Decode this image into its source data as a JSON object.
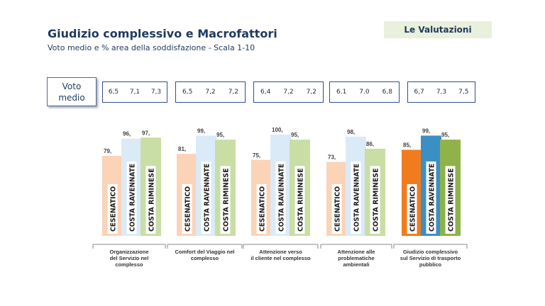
{
  "header": {
    "title": "Giudizio complessivo e Macrofattori",
    "subtitle": "Voto medio e % area della soddisfazione - Scala 1-10",
    "badge": "Le Valutazioni"
  },
  "voto_medio": {
    "label_line1": "Voto",
    "label_line2": "medio",
    "groups": [
      [
        "6,5",
        "7,1",
        "7,3"
      ],
      [
        "6,5",
        "7,2",
        "7,2"
      ],
      [
        "6,4",
        "7,2",
        "7,2"
      ],
      [
        "6.1",
        "7.0",
        "6,8"
      ],
      [
        "6,7",
        "7,3",
        "7,5"
      ]
    ]
  },
  "colors": {
    "light": [
      "#fbd3b7",
      "#dbeaf7",
      "#c8dea5"
    ],
    "strong": [
      "#f07c1e",
      "#3b8fc4",
      "#8fb24a"
    ],
    "axis": "#8a8a8a",
    "label_bg": "#ffffff"
  },
  "chart_data": {
    "type": "bar",
    "series": [
      {
        "name": "CESENATICO",
        "values": [
          79,
          81,
          75,
          73,
          85
        ]
      },
      {
        "name": "COSTA RAVENNATE",
        "values": [
          96,
          99,
          100,
          98,
          99
        ]
      },
      {
        "name": "COSTA RIMINESE",
        "values": [
          97,
          95,
          95,
          86,
          95
        ]
      }
    ],
    "categories": [
      [
        "Organizzazione",
        "del Servizio nel",
        "complesso"
      ],
      [
        "Comfort del Viaggio nel",
        "complesso"
      ],
      [
        "Attenzione verso",
        "il cliente nel complesso"
      ],
      [
        "Attenzione alle",
        "problematiche",
        "ambientali"
      ],
      [
        "Giudizio complessivo",
        "sul Servizio di trasporto",
        "pubblico"
      ]
    ],
    "data_labels": [
      [
        "79,",
        "96,",
        "97,"
      ],
      [
        "81,",
        "99,",
        "95,"
      ],
      [
        "75,",
        "100,",
        "95,"
      ],
      [
        "73,",
        "98,",
        "86,"
      ],
      [
        "85,",
        "99,",
        "95,"
      ]
    ],
    "highlight_category_index": 4,
    "ylim": [
      0,
      100
    ],
    "grid": false
  }
}
